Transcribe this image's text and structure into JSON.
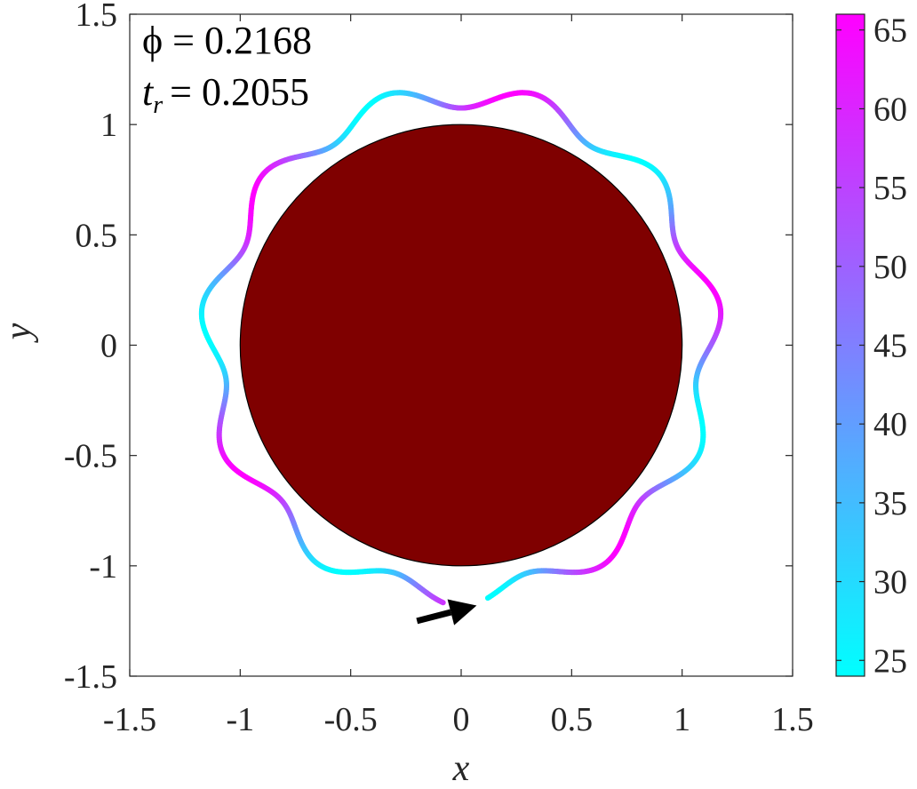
{
  "chart_data": {
    "type": "scatter",
    "xlabel": "x",
    "ylabel": "y",
    "xlim": [
      -1.5,
      1.5
    ],
    "ylim": [
      -1.5,
      1.5
    ],
    "xticks": [
      -1.5,
      -1,
      -0.5,
      0,
      0.5,
      1,
      1.5
    ],
    "xtick_labels": [
      "-1.5",
      "-1",
      "-0.5",
      "0",
      "0.5",
      "1",
      "1.5"
    ],
    "yticks": [
      -1.5,
      -1,
      -0.5,
      0,
      0.5,
      1,
      1.5
    ],
    "ytick_labels": [
      "-1.5",
      "-1",
      "-0.5",
      "0",
      "0.5",
      "1",
      "1.5"
    ],
    "grid": false,
    "annotations": [
      {
        "text": "ϕ = 0.2168"
      },
      {
        "text": "t_r = 0.2055",
        "symbol": "t",
        "subscript": "r",
        "value": "0.2055"
      }
    ],
    "disk": {
      "center": [
        0,
        0
      ],
      "radius": 1.0,
      "color": "#7f0000"
    },
    "trajectory": {
      "shape": "wavy loop around disk",
      "mean_radius": 1.13,
      "wave_amplitude": 0.055,
      "n_waves": 11,
      "start_angle_deg": 266,
      "end_angle_deg": -84,
      "direction": "counterclockwise",
      "color_period_waves": 2,
      "color_phase_deg": 15
    },
    "arrow": {
      "from": [
        -0.2,
        -1.25
      ],
      "to": [
        0.07,
        -1.18
      ],
      "color": "#000000"
    },
    "colorbar": {
      "min": 24,
      "max": 66,
      "ticks": [
        25,
        30,
        35,
        40,
        45,
        50,
        55,
        60,
        65
      ],
      "tick_labels": [
        "25",
        "30",
        "35",
        "40",
        "45",
        "50",
        "55",
        "60",
        "65"
      ],
      "colormap": "cool",
      "color_low": "#00ffff",
      "color_high": "#ff00ff"
    }
  }
}
